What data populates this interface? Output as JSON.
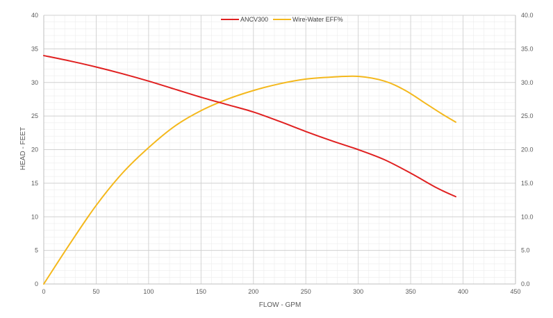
{
  "chart_data": {
    "type": "line",
    "xlabel": "FLOW - GPM",
    "ylabel": "HEAD - FEET",
    "xlim": [
      0,
      450
    ],
    "ylim": [
      0,
      40
    ],
    "y2lim": [
      0,
      40
    ],
    "xticks": [
      "0",
      "50",
      "100",
      "150",
      "200",
      "250",
      "300",
      "350",
      "400",
      "450"
    ],
    "yticks": [
      "0",
      "5",
      "10",
      "15",
      "20",
      "25",
      "30",
      "35",
      "40"
    ],
    "y2ticks": [
      "0.0",
      "5.0",
      "10.0",
      "15.0",
      "20.0",
      "25.0",
      "30.0",
      "35.0",
      "40.0"
    ],
    "grid": true,
    "legend_position": "top",
    "series": [
      {
        "name": "ANCV300",
        "color": "#e02020",
        "axis": "left",
        "x": [
          0,
          25,
          50,
          75,
          100,
          125,
          150,
          175,
          200,
          225,
          250,
          275,
          300,
          325,
          350,
          375,
          393
        ],
        "y": [
          34.0,
          33.2,
          32.3,
          31.3,
          30.2,
          29.0,
          27.8,
          26.7,
          25.6,
          24.2,
          22.7,
          21.3,
          20.0,
          18.5,
          16.5,
          14.3,
          13.0
        ]
      },
      {
        "name": "Wire-Water EFF%",
        "color": "#f4b81c",
        "axis": "right",
        "x": [
          0,
          25,
          50,
          75,
          100,
          125,
          150,
          175,
          200,
          225,
          250,
          275,
          300,
          325,
          345,
          365,
          380,
          393
        ],
        "y": [
          0.0,
          6.0,
          11.7,
          16.5,
          20.3,
          23.5,
          25.8,
          27.5,
          28.8,
          29.8,
          30.5,
          30.8,
          30.9,
          30.2,
          28.8,
          26.8,
          25.3,
          24.1
        ]
      }
    ]
  }
}
